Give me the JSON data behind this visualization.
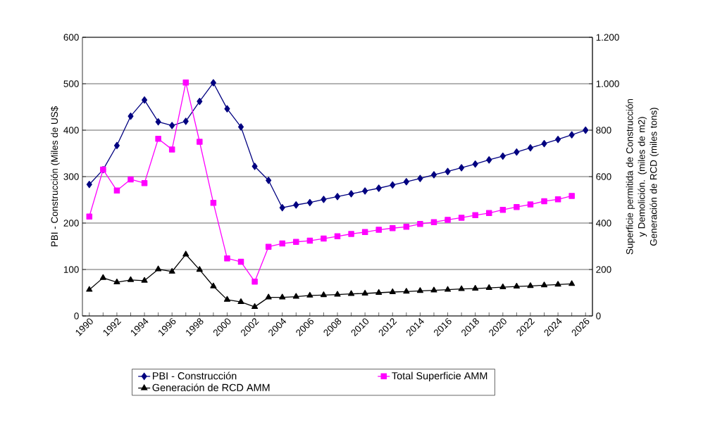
{
  "chart_data": {
    "type": "line",
    "ylabel": "PBI - Construcción (Miles de US$",
    "y2label": "Superficie permitida de Construcción y Demolición. (miles de m2) Generación de RCD (miles tons)",
    "categories": [
      "1990",
      null,
      "1992",
      null,
      "1994",
      null,
      "1996",
      null,
      "1998",
      null,
      "2000",
      null,
      "2002",
      null,
      "2004",
      null,
      "2006",
      null,
      "2008",
      null,
      "2010",
      null,
      "2012",
      null,
      "2014",
      null,
      "2016",
      null,
      "2018",
      null,
      "2020",
      null,
      "2022",
      null,
      "2024",
      null,
      "2026"
    ],
    "series": [
      {
        "name": "PBI - Construcción",
        "color": "#000080",
        "marker": "diamond",
        "values": [
          283,
          315,
          367,
          430,
          465,
          418,
          410,
          419,
          462,
          502,
          446,
          407,
          322,
          292,
          233,
          239,
          244,
          251,
          257,
          263,
          269,
          275,
          282,
          289,
          296,
          304,
          311,
          319,
          327,
          336,
          344,
          353,
          362,
          371,
          380,
          390,
          400
        ]
      },
      {
        "name": "Total Superficie AMM",
        "color": "#ff00ff",
        "marker": "square",
        "axis": "y2",
        "values": [
          428,
          630,
          540,
          588,
          572,
          763,
          717,
          1005,
          750,
          487,
          248,
          233,
          148,
          298,
          312,
          319,
          324,
          333,
          343,
          353,
          361,
          371,
          378,
          384,
          396,
          404,
          414,
          423,
          434,
          443,
          457,
          469,
          480,
          494,
          502,
          517,
          null
        ]
      },
      {
        "name": "Generación de RCD AMM",
        "color": "#000000",
        "marker": "triangle",
        "axis": "y2",
        "values": [
          113,
          164,
          145,
          155,
          152,
          201,
          191,
          265,
          199,
          128,
          70,
          60,
          39,
          80,
          80,
          83,
          88,
          90,
          92,
          95,
          97,
          100,
          103,
          105,
          108,
          110,
          113,
          116,
          118,
          121,
          124,
          127,
          129,
          132,
          135,
          138,
          null
        ]
      }
    ],
    "ylim": [
      0,
      600
    ],
    "yticks": [
      0,
      100,
      200,
      300,
      400,
      500,
      600
    ],
    "y2lim": [
      0,
      1200
    ],
    "y2ticks": [
      0,
      200,
      400,
      600,
      800,
      {
        "value": 1000,
        "label": "1.000"
      },
      {
        "value": 1200,
        "label": "1.200"
      }
    ],
    "grid": "y",
    "legend": "bottom",
    "line_style": "solid"
  }
}
